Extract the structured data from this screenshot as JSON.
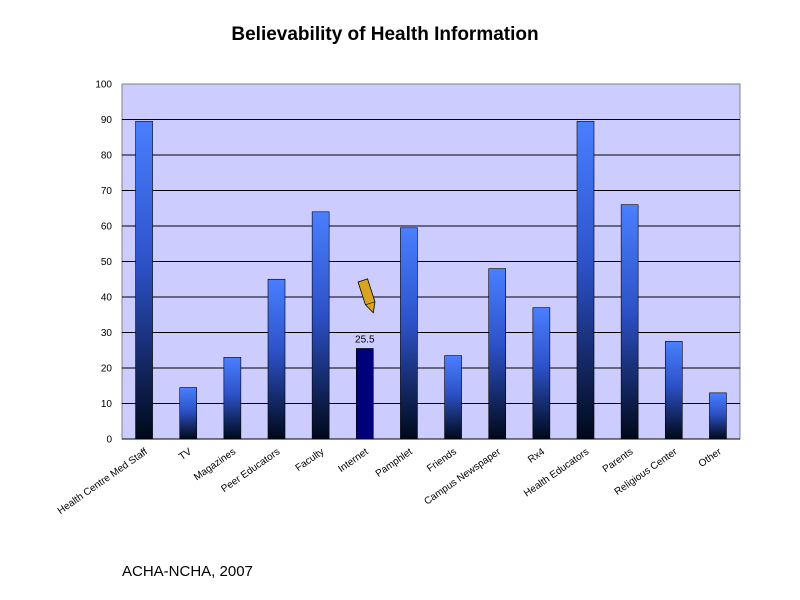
{
  "chart_data": {
    "type": "bar",
    "title": "Believability of Health Information",
    "xlabel": "",
    "ylabel": "",
    "ylim": [
      0,
      100
    ],
    "yticks": [
      0,
      10,
      20,
      30,
      40,
      50,
      60,
      70,
      80,
      90,
      100
    ],
    "grid": true,
    "legend": "none",
    "categories": [
      "Health Centre Med Staff",
      "TV",
      "Magazines",
      "Peer Educators",
      "Faculty",
      "Internet",
      "Pamphlet",
      "Friends",
      "Campus Newspaper",
      "Rx4",
      "Health Educators",
      "Parents",
      "Religious Center",
      "Other"
    ],
    "values": [
      89.5,
      14.5,
      23,
      45,
      64,
      25.5,
      59.5,
      23.5,
      48,
      37,
      89.5,
      66,
      27.5,
      13
    ],
    "highlight_index": 5,
    "data_labels": [
      {
        "index": 5,
        "text": "25.5"
      }
    ],
    "annotation_marker": "pencil-pointer",
    "colors": {
      "plot_background": "#ccccff",
      "bar_top": "#4a7fff",
      "bar_bottom": "#000818",
      "highlight_bar": "#00007a",
      "gridline": "#000000",
      "pointer_fill": "#d9a520"
    }
  },
  "footer": {
    "source": "ACHA-NCHA, 2007"
  }
}
